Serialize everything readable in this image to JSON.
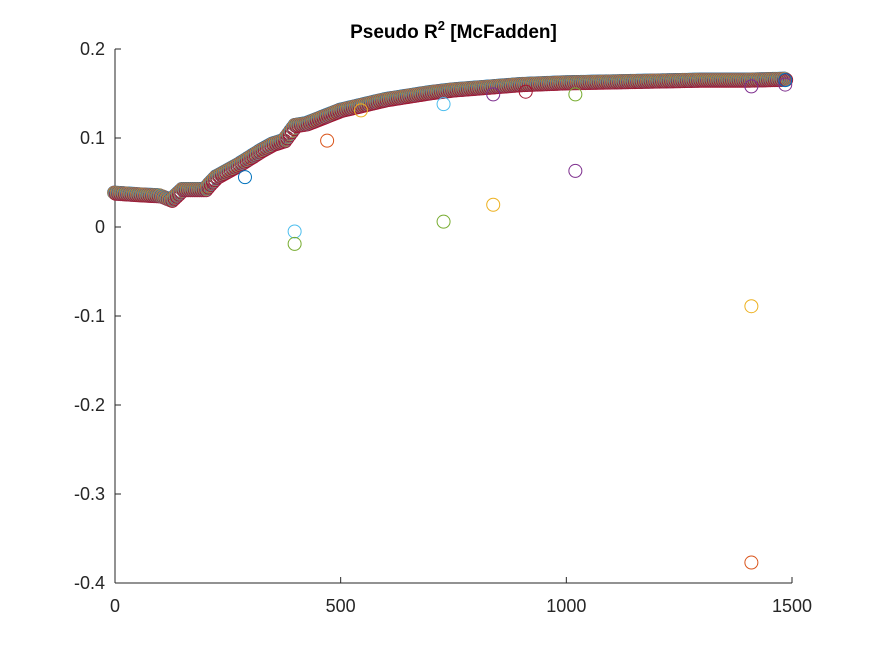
{
  "chart_data": {
    "type": "scatter",
    "title": "Pseudo R",
    "title_superscript": "2",
    "title_suffix": " [McFadden]",
    "xlabel": "",
    "ylabel": "",
    "xlim": [
      0,
      1500
    ],
    "ylim": [
      -0.4,
      0.2
    ],
    "xticks": [
      0,
      500,
      1000,
      1500
    ],
    "yticks": [
      -0.4,
      -0.3,
      -0.2,
      -0.1,
      0,
      0.1,
      0.2
    ],
    "xtick_labels": [
      "0",
      "500",
      "1000",
      "1500"
    ],
    "ytick_labels": [
      "-0.4",
      "-0.3",
      "-0.2",
      "-0.1",
      "0",
      "0.1",
      "0.2"
    ],
    "grid": false,
    "marker": "open-circle",
    "series_colors": [
      "#0072BD",
      "#D95319",
      "#EDB120",
      "#7E2F8E",
      "#77AC30",
      "#4DBEEE",
      "#A2142F"
    ],
    "main_curve": {
      "description_values": true,
      "x": [
        0,
        30,
        60,
        100,
        115,
        125,
        150,
        200,
        210,
        225,
        250,
        275,
        300,
        325,
        350,
        375,
        400,
        425,
        450,
        475,
        500,
        525,
        550,
        575,
        600,
        650,
        700,
        750,
        800,
        850,
        900,
        1000,
        1100,
        1200,
        1300,
        1400,
        1485
      ],
      "y": [
        0.038,
        0.037,
        0.036,
        0.035,
        0.032,
        0.03,
        0.042,
        0.042,
        0.048,
        0.056,
        0.063,
        0.07,
        0.078,
        0.086,
        0.093,
        0.097,
        0.114,
        0.116,
        0.121,
        0.126,
        0.131,
        0.134,
        0.137,
        0.14,
        0.143,
        0.147,
        0.151,
        0.154,
        0.156,
        0.158,
        0.16,
        0.162,
        0.163,
        0.164,
        0.165,
        0.165,
        0.166
      ]
    },
    "outliers": [
      {
        "x": 288,
        "y": 0.056,
        "color": "#0072BD"
      },
      {
        "x": 398,
        "y": -0.005,
        "color": "#4DBEEE"
      },
      {
        "x": 398,
        "y": -0.019,
        "color": "#77AC30"
      },
      {
        "x": 470,
        "y": 0.097,
        "color": "#D95319"
      },
      {
        "x": 545,
        "y": 0.131,
        "color": "#EDB120"
      },
      {
        "x": 728,
        "y": 0.138,
        "color": "#4DBEEE"
      },
      {
        "x": 728,
        "y": 0.006,
        "color": "#77AC30"
      },
      {
        "x": 838,
        "y": 0.149,
        "color": "#7E2F8E"
      },
      {
        "x": 838,
        "y": 0.025,
        "color": "#EDB120"
      },
      {
        "x": 910,
        "y": 0.152,
        "color": "#A2142F"
      },
      {
        "x": 1020,
        "y": 0.063,
        "color": "#7E2F8E"
      },
      {
        "x": 1020,
        "y": 0.149,
        "color": "#77AC30"
      },
      {
        "x": 1410,
        "y": -0.089,
        "color": "#EDB120"
      },
      {
        "x": 1410,
        "y": -0.377,
        "color": "#D95319"
      },
      {
        "x": 1410,
        "y": 0.158,
        "color": "#7E2F8E"
      },
      {
        "x": 1485,
        "y": 0.16,
        "color": "#7E2F8E"
      },
      {
        "x": 1485,
        "y": 0.165,
        "color": "#0072BD"
      }
    ]
  }
}
